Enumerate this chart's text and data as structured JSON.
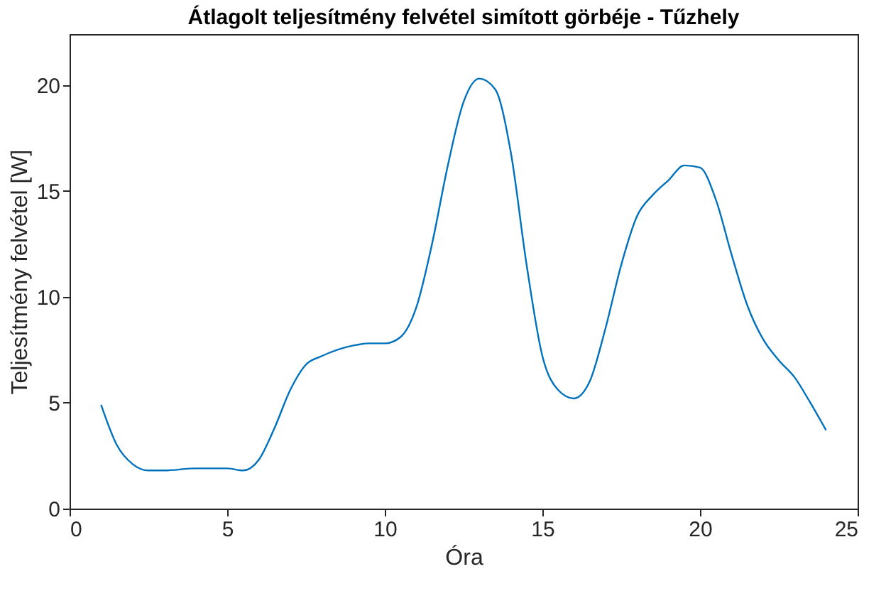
{
  "chart_data": {
    "type": "line",
    "title": "Átlagolt teljesítmény felvétel simított görbéje - Tűzhely",
    "xlabel": "Óra",
    "ylabel": "Teljesítmény felvétel [W]",
    "x": [
      1,
      1.5,
      2,
      2.5,
      3,
      4,
      5,
      5.5,
      6,
      6.5,
      7,
      7.5,
      8,
      9,
      9.5,
      10,
      10.5,
      11,
      11.5,
      12,
      12.5,
      13,
      13.5,
      14,
      14.5,
      15,
      15.5,
      16,
      16.5,
      17,
      17.5,
      18,
      18.5,
      19,
      19.5,
      20,
      20.5,
      21,
      21.5,
      22,
      22.5,
      23,
      23.5,
      24
    ],
    "series": [
      {
        "color": "#0072bd",
        "values": [
          4.9,
          3.0,
          2.1,
          1.8,
          1.8,
          1.9,
          1.9,
          1.8,
          2.3,
          3.8,
          5.6,
          6.8,
          7.2,
          7.7,
          7.8,
          7.8,
          8.1,
          9.5,
          12.5,
          16.2,
          19.2,
          20.3,
          19.8,
          16.8,
          11.5,
          7.2,
          5.6,
          5.2,
          6.0,
          8.5,
          11.5,
          13.8,
          14.8,
          15.5,
          16.2,
          16.1,
          14.6,
          12.0,
          9.6,
          8.0,
          7.0,
          6.2,
          5.0,
          3.7
        ]
      }
    ],
    "xlim": [
      0,
      25
    ],
    "xticks": [
      0,
      5,
      10,
      15,
      20,
      25
    ],
    "ylim": [
      0,
      22.4
    ],
    "yticks": [
      0,
      5,
      10,
      15,
      20
    ],
    "grid": false,
    "legend": false,
    "marker": "none",
    "line_style": "solid"
  }
}
